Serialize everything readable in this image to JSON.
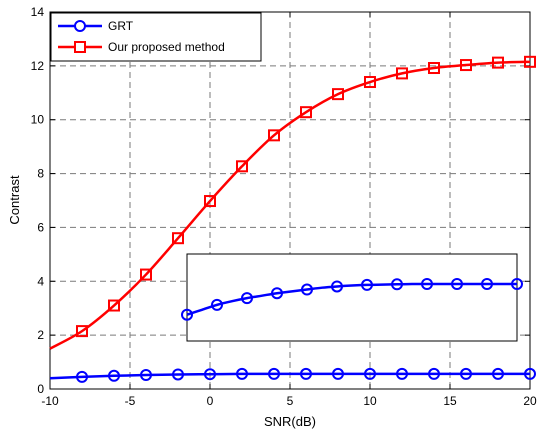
{
  "chart_data": {
    "type": "line",
    "title": "",
    "xlabel": "SNR(dB)",
    "ylabel": "Contrast",
    "xlim": [
      -10,
      20
    ],
    "ylim": [
      0,
      14
    ],
    "xticks": [
      -10,
      -5,
      0,
      5,
      10,
      15,
      20
    ],
    "yticks": [
      0,
      2,
      4,
      6,
      8,
      10,
      12,
      14
    ],
    "grid": true,
    "legend_position": "top-left",
    "series": [
      {
        "name": "GRT",
        "color": "#0000ff",
        "marker": "circle",
        "x": [
          -10,
          -8,
          -6,
          -4,
          -2,
          0,
          2,
          4,
          6,
          8,
          10,
          12,
          14,
          16,
          18,
          20
        ],
        "y": [
          0.4,
          0.45,
          0.49,
          0.52,
          0.54,
          0.55,
          0.56,
          0.56,
          0.56,
          0.56,
          0.56,
          0.56,
          0.56,
          0.56,
          0.56,
          0.56
        ],
        "marker_x": [
          -8,
          -6,
          -4,
          -2,
          0,
          2,
          4,
          6,
          8,
          10,
          12,
          14,
          16,
          18,
          20
        ]
      },
      {
        "name": "Our proposed method",
        "color": "#ff0000",
        "marker": "square",
        "x": [
          -10,
          -8,
          -6,
          -4,
          -2,
          0,
          2,
          4,
          6,
          8,
          10,
          12,
          14,
          16,
          18,
          20
        ],
        "y": [
          1.5,
          2.15,
          3.1,
          4.25,
          5.6,
          6.98,
          8.27,
          9.42,
          10.28,
          10.95,
          11.4,
          11.72,
          11.92,
          12.03,
          12.12,
          12.15
        ],
        "marker_x": [
          -8,
          -6,
          -4,
          -2,
          0,
          2,
          4,
          6,
          8,
          10,
          12,
          14,
          16,
          18,
          20
        ]
      }
    ],
    "inset": {
      "series": "GRT",
      "color": "#0000ff",
      "marker": "circle",
      "x": [
        -2,
        -1,
        0,
        1,
        2,
        3,
        4,
        5,
        6,
        7,
        8,
        9,
        10,
        11,
        12,
        13,
        14,
        15,
        16,
        17,
        18,
        19,
        20
      ],
      "y": [
        0.2,
        0.28,
        0.36,
        0.42,
        0.47,
        0.51,
        0.55,
        0.58,
        0.61,
        0.64,
        0.66,
        0.675,
        0.685,
        0.69,
        0.695,
        0.7,
        0.7,
        0.7,
        0.7,
        0.7,
        0.7,
        0.7,
        0.7
      ],
      "marker_x": [
        -2,
        0,
        2,
        4,
        6,
        8,
        10,
        12,
        14,
        16,
        18,
        20
      ]
    }
  }
}
